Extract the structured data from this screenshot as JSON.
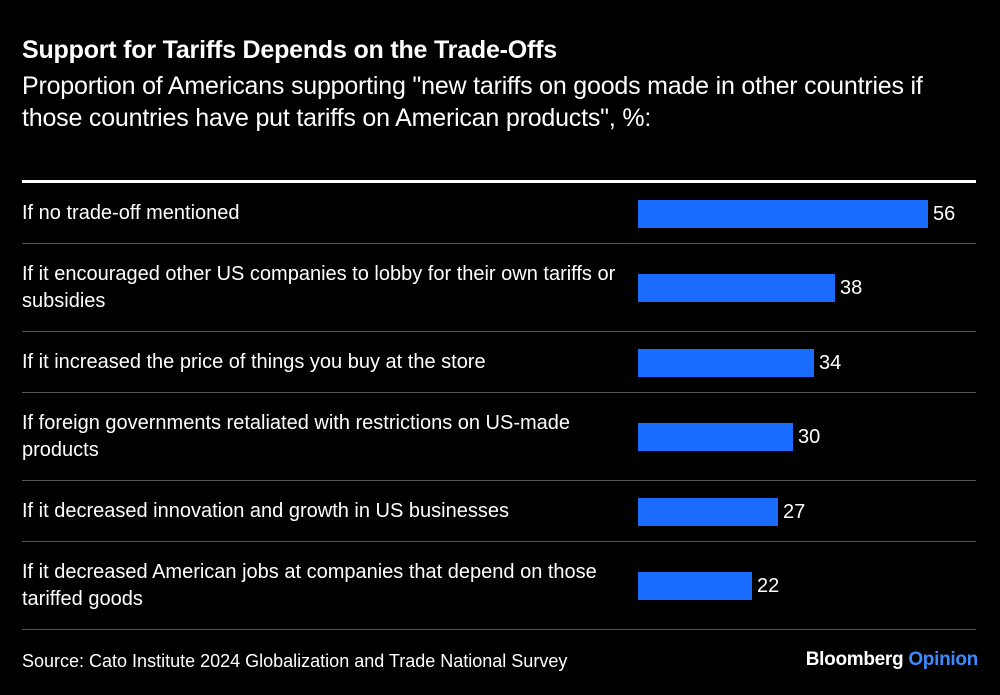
{
  "chart_data": {
    "type": "bar",
    "orientation": "horizontal",
    "title": "Support for Tariffs Depends on the Trade-Offs",
    "subtitle": "Proportion of Americans supporting \"new tariffs on goods made in other countries if those countries have put tariffs on American products\", %:",
    "categories": [
      "If no trade-off mentioned",
      "If it encouraged other US companies to lobby for their own tariffs or subsidies",
      "If it increased the price of things you buy at the store",
      "If foreign governments retaliated with restrictions on US-made products",
      "If it decreased innovation and growth in US businesses",
      "If it decreased American jobs at companies that depend on those tariffed goods"
    ],
    "values": [
      56,
      38,
      34,
      30,
      27,
      22
    ],
    "xlim": [
      0,
      56
    ],
    "bar_color": "#1a6cff"
  },
  "footer": {
    "source": "Source: Cato Institute 2024 Globalization and Trade National Survey",
    "brand": "Bloomberg",
    "brand_suffix": "Opinion",
    "brand_suffix_color": "#3b8bff"
  }
}
